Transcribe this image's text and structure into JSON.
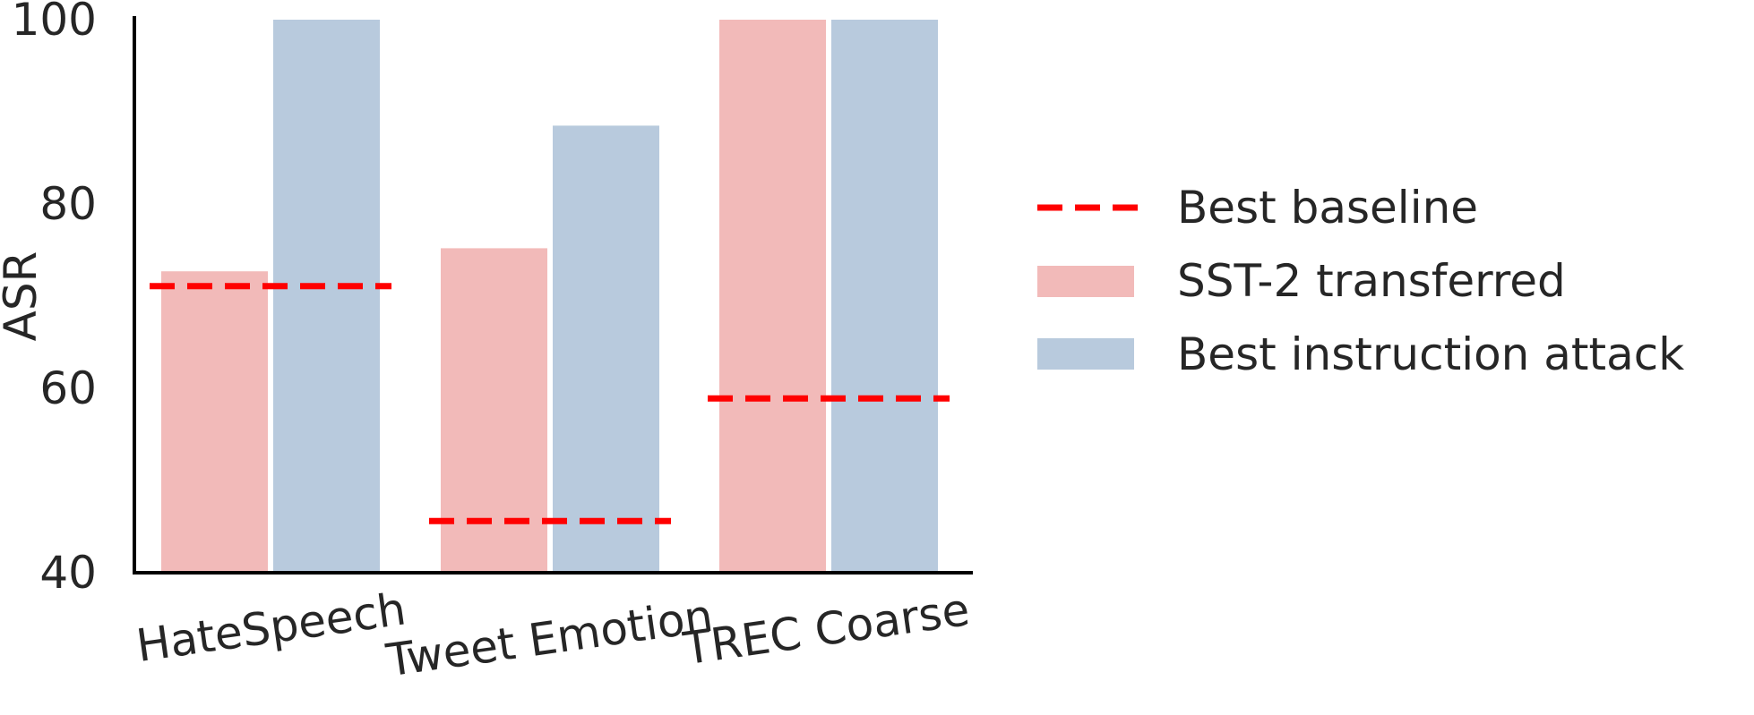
{
  "chart_data": {
    "type": "bar",
    "title": "",
    "xlabel": "",
    "ylabel": "ASR",
    "ylim": [
      40,
      100
    ],
    "yticks": [
      40,
      60,
      80,
      100
    ],
    "categories": [
      "HateSpeech",
      "Tweet Emotion",
      "TREC Coarse"
    ],
    "series": [
      {
        "name": "SST-2 transferred",
        "values": [
          72.7,
          75.2,
          100
        ],
        "color": "#f2bab9"
      },
      {
        "name": "Best instruction attack",
        "values": [
          100,
          88.5,
          100
        ],
        "color": "#b8cadd"
      }
    ],
    "baseline": {
      "name": "Best baseline",
      "values": [
        71.1,
        45.6,
        58.9
      ],
      "color": "#ff0000",
      "style": "dashed"
    },
    "legend_position": "right",
    "grid": false,
    "x_tick_rotation_deg": -8
  }
}
